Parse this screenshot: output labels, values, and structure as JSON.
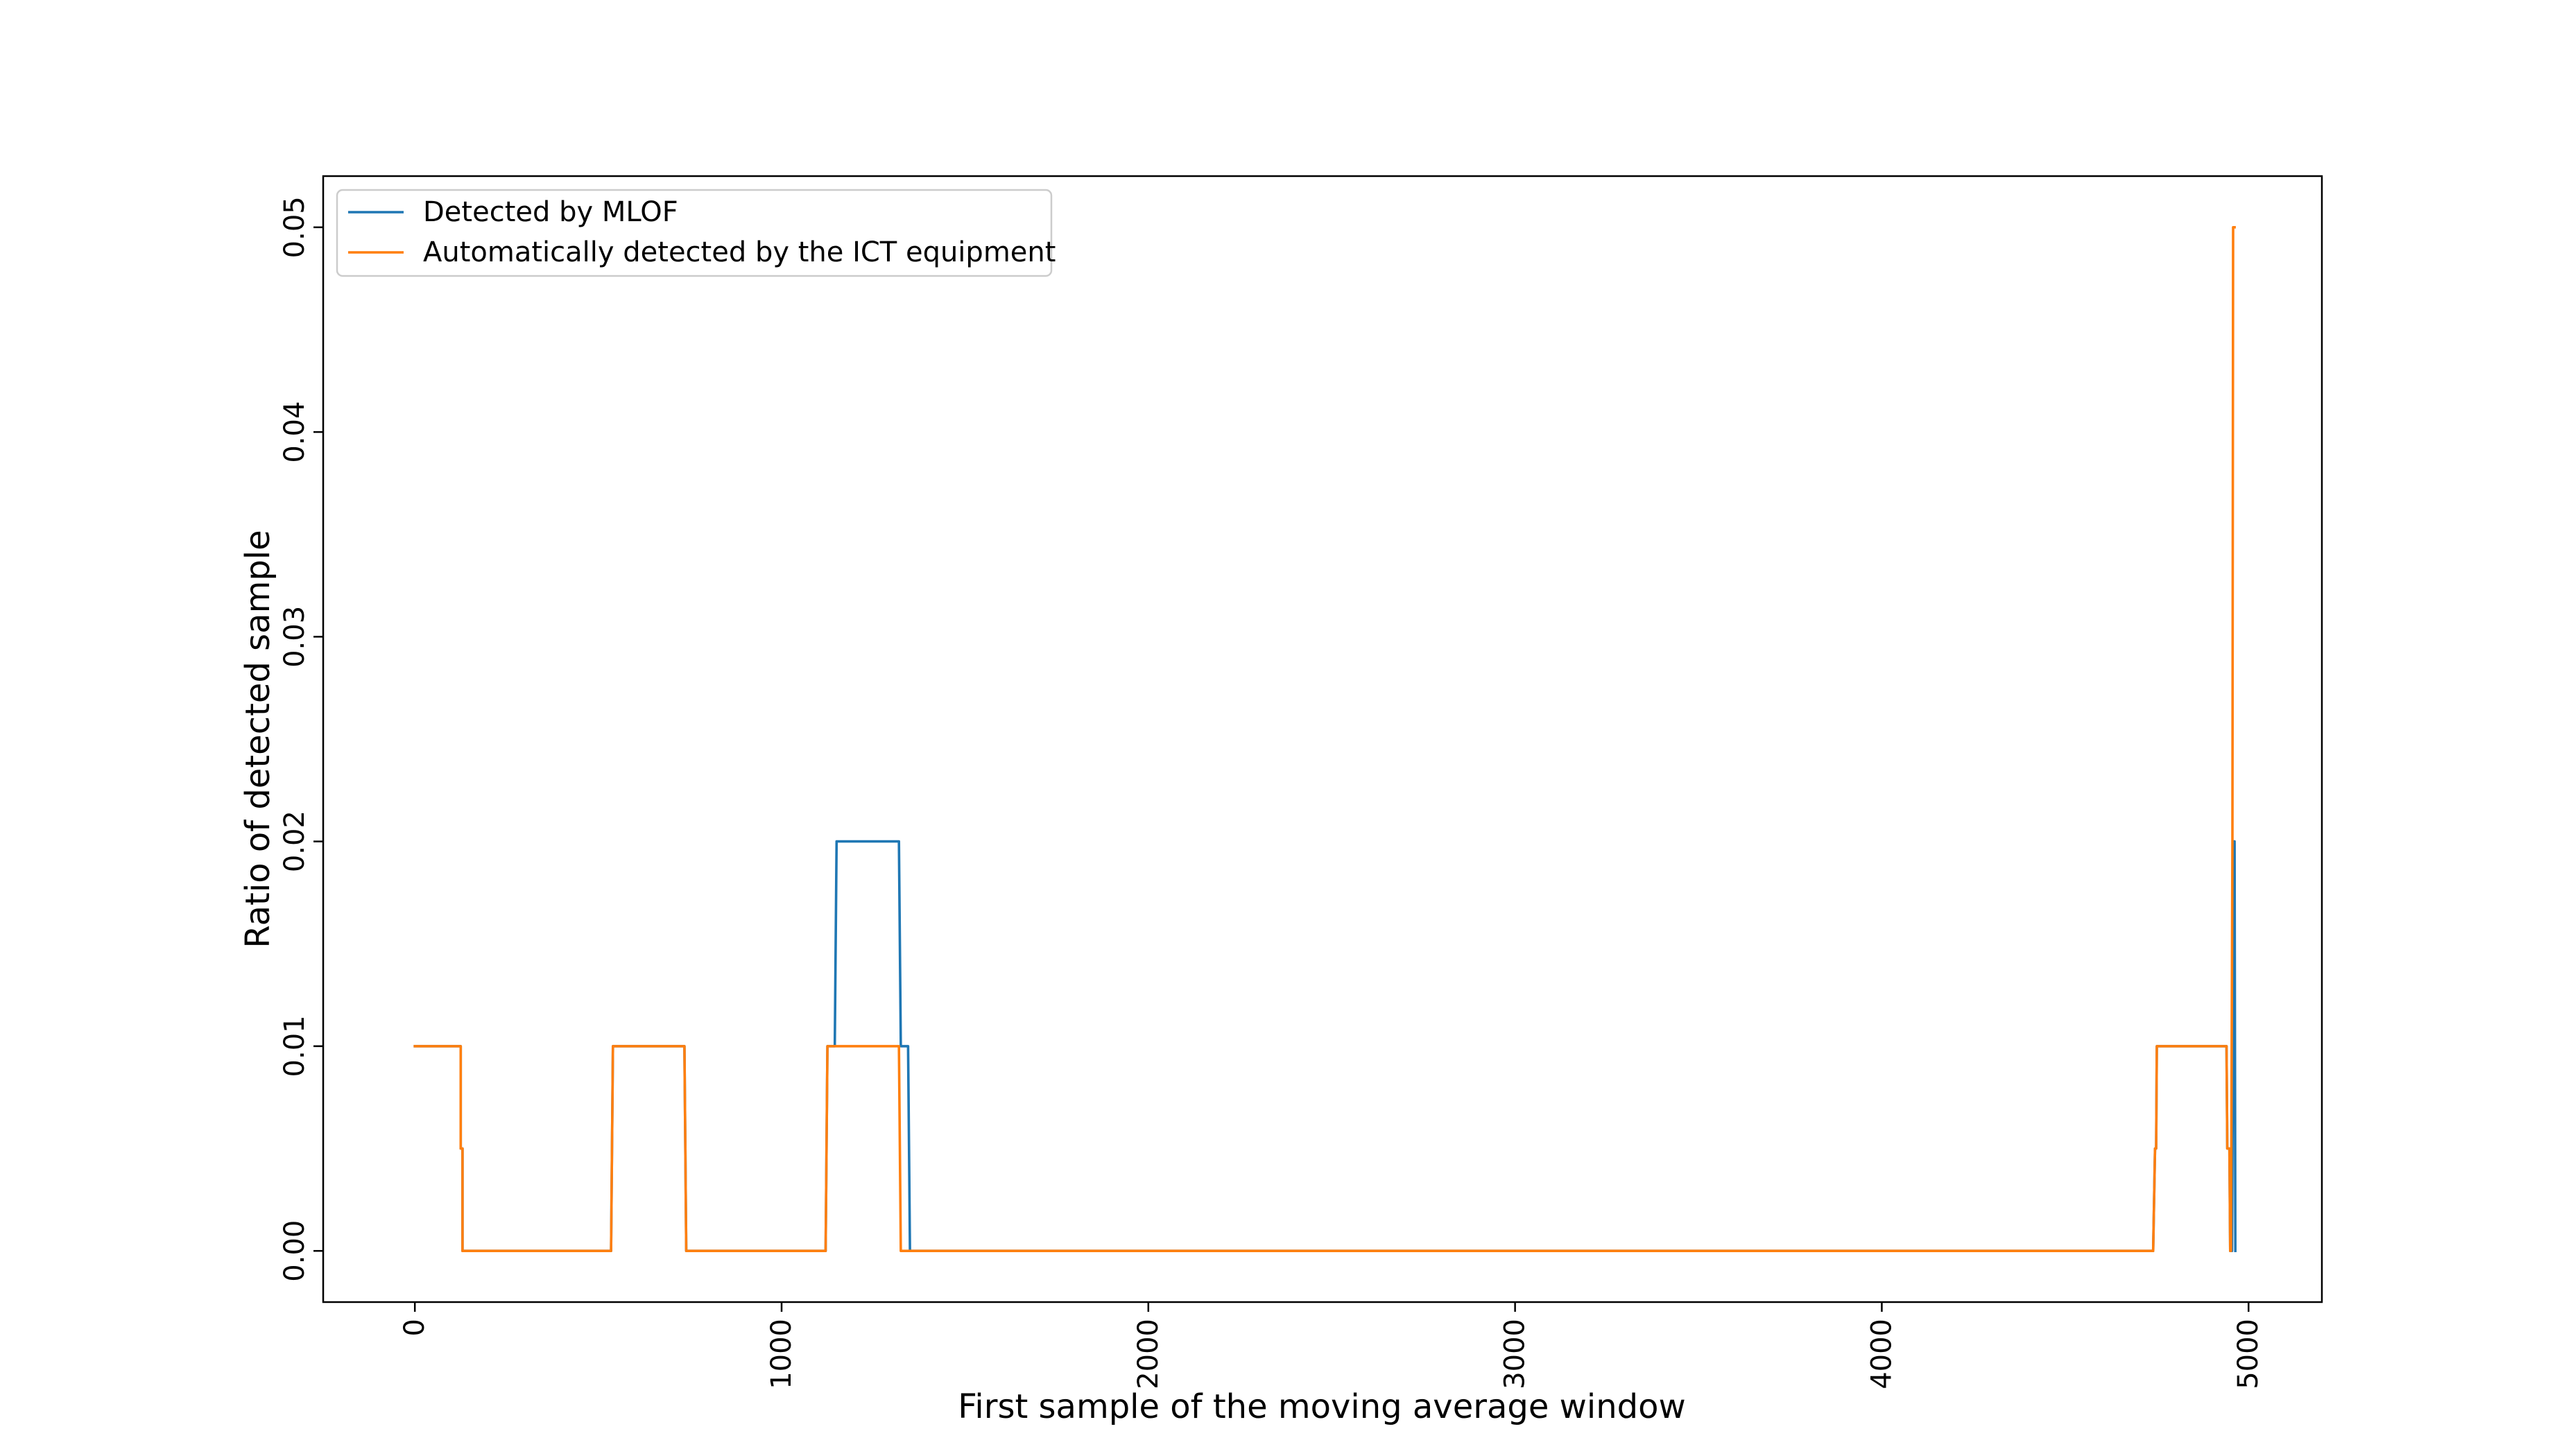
{
  "chart_data": {
    "type": "line",
    "title": "",
    "xlabel": "First sample of the moving average window",
    "ylabel": "Ratio of detected sample",
    "xlim": [
      -250,
      5200
    ],
    "ylim": [
      -0.0025,
      0.0525
    ],
    "xticks": [
      0,
      1000,
      2000,
      3000,
      4000,
      5000
    ],
    "xtick_labels": [
      "0",
      "1000",
      "2000",
      "3000",
      "4000",
      "5000"
    ],
    "yticks": [
      0.0,
      0.01,
      0.02,
      0.03,
      0.04,
      0.05
    ],
    "ytick_labels": [
      "0.00",
      "0.01",
      "0.02",
      "0.03",
      "0.04",
      "0.05"
    ],
    "tick_label_rotation": "vertical",
    "grid": false,
    "legend_position": "top-left",
    "series": [
      {
        "name": "Detected by MLOF",
        "color": "#1f77b4",
        "points": [
          [
            0,
            0.01
          ],
          [
            125,
            0.01
          ],
          [
            125,
            0.005
          ],
          [
            130,
            0.005
          ],
          [
            130,
            0.0
          ],
          [
            535,
            0.0
          ],
          [
            540,
            0.01
          ],
          [
            735,
            0.01
          ],
          [
            740,
            0.0
          ],
          [
            1120,
            0.0
          ],
          [
            1125,
            0.01
          ],
          [
            1145,
            0.01
          ],
          [
            1150,
            0.02
          ],
          [
            1320,
            0.02
          ],
          [
            1325,
            0.01
          ],
          [
            1345,
            0.01
          ],
          [
            1350,
            0.0
          ],
          [
            4740,
            0.0
          ],
          [
            4745,
            0.005
          ],
          [
            4748,
            0.005
          ],
          [
            4750,
            0.01
          ],
          [
            4940,
            0.01
          ],
          [
            4942,
            0.005
          ],
          [
            4948,
            0.005
          ],
          [
            4950,
            0.0
          ],
          [
            4955,
            0.0
          ],
          [
            4960,
            0.02
          ],
          [
            4962,
            0.02
          ],
          [
            4964,
            0.0
          ]
        ]
      },
      {
        "name": "Automatically detected by the ICT equipment",
        "color": "#ff7f0e",
        "points": [
          [
            0,
            0.01
          ],
          [
            125,
            0.01
          ],
          [
            125,
            0.005
          ],
          [
            130,
            0.005
          ],
          [
            130,
            0.0
          ],
          [
            535,
            0.0
          ],
          [
            540,
            0.01
          ],
          [
            735,
            0.01
          ],
          [
            740,
            0.0
          ],
          [
            1120,
            0.0
          ],
          [
            1125,
            0.01
          ],
          [
            1320,
            0.01
          ],
          [
            1325,
            0.0
          ],
          [
            4740,
            0.0
          ],
          [
            4745,
            0.005
          ],
          [
            4748,
            0.005
          ],
          [
            4750,
            0.01
          ],
          [
            4940,
            0.01
          ],
          [
            4942,
            0.005
          ],
          [
            4948,
            0.005
          ],
          [
            4950,
            0.0
          ],
          [
            4952,
            0.0
          ],
          [
            4956,
            0.02
          ],
          [
            4958,
            0.05
          ],
          [
            4962,
            0.05
          ]
        ]
      }
    ]
  }
}
